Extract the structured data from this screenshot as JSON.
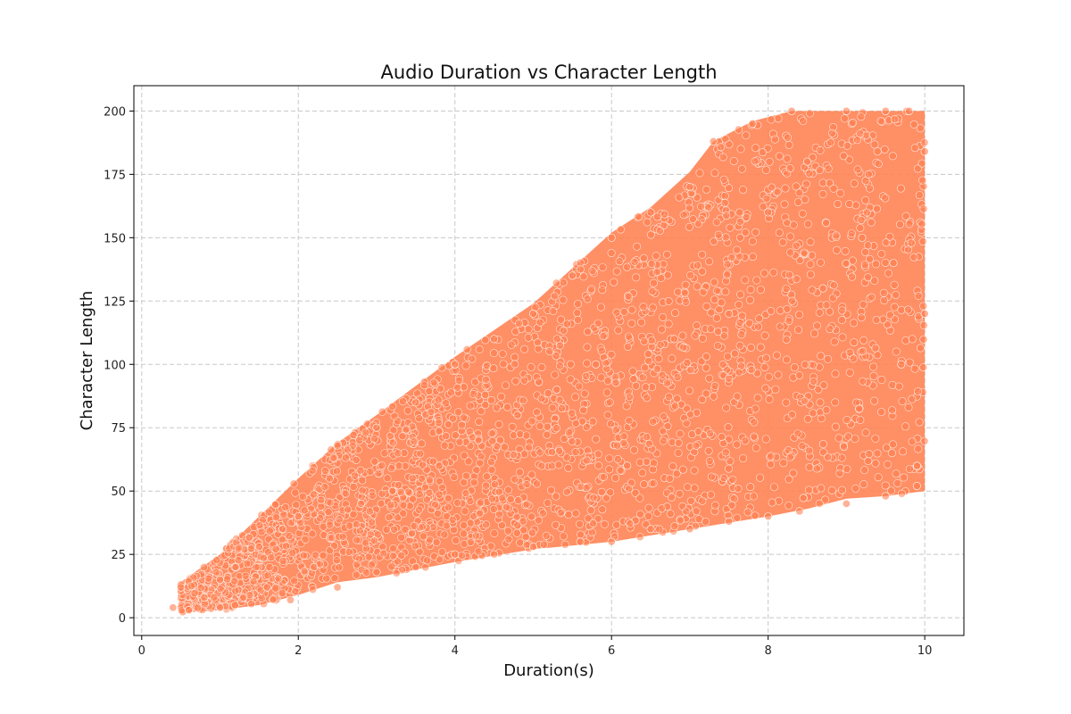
{
  "chart_data": {
    "type": "scatter",
    "title": "Audio Duration vs Character Length",
    "xlabel": "Duration(s)",
    "ylabel": "Character Length",
    "xlim": [
      -0.1,
      10.5
    ],
    "ylim": [
      -7,
      210
    ],
    "xticks": [
      0,
      2,
      4,
      6,
      8,
      10
    ],
    "yticks": [
      0,
      25,
      50,
      75,
      100,
      125,
      150,
      175,
      200
    ],
    "grid": true,
    "marker_color": "#ff7f50",
    "marker_alpha": 0.6,
    "marker_edge_color": "#ffffff",
    "series": [
      {
        "points": [
          [
            0.4,
            4
          ],
          [
            0.5,
            12
          ],
          [
            0.6,
            3
          ],
          [
            0.8,
            8
          ],
          [
            1.0,
            15
          ],
          [
            1.0,
            4
          ],
          [
            1.2,
            20
          ],
          [
            1.3,
            8
          ],
          [
            1.5,
            28
          ],
          [
            1.6,
            12
          ],
          [
            1.8,
            35
          ],
          [
            1.9,
            7
          ],
          [
            2.0,
            40
          ],
          [
            2.2,
            20
          ],
          [
            2.4,
            55
          ],
          [
            2.5,
            68
          ],
          [
            2.5,
            12
          ],
          [
            2.8,
            45
          ],
          [
            3.0,
            75
          ],
          [
            3.0,
            18
          ],
          [
            3.2,
            50
          ],
          [
            3.5,
            85
          ],
          [
            3.5,
            20
          ],
          [
            3.8,
            60
          ],
          [
            4.0,
            100
          ],
          [
            4.0,
            25
          ],
          [
            4.3,
            70
          ],
          [
            4.5,
            110
          ],
          [
            4.5,
            25
          ],
          [
            4.8,
            80
          ],
          [
            5.0,
            120
          ],
          [
            5.0,
            28
          ],
          [
            5.3,
            90
          ],
          [
            5.5,
            135
          ],
          [
            5.6,
            30
          ],
          [
            5.8,
            100
          ],
          [
            6.0,
            150
          ],
          [
            6.0,
            30
          ],
          [
            6.2,
            60
          ],
          [
            6.5,
            160
          ],
          [
            6.5,
            35
          ],
          [
            6.8,
            110
          ],
          [
            7.0,
            170
          ],
          [
            7.0,
            35
          ],
          [
            7.3,
            188
          ],
          [
            7.5,
            120
          ],
          [
            7.5,
            38
          ],
          [
            7.8,
            195
          ],
          [
            8.0,
            160
          ],
          [
            8.0,
            40
          ],
          [
            8.3,
            200
          ],
          [
            8.4,
            42
          ],
          [
            8.5,
            180
          ],
          [
            8.7,
            130
          ],
          [
            9.0,
            200
          ],
          [
            9.0,
            45
          ],
          [
            9.2,
            150
          ],
          [
            9.5,
            200
          ],
          [
            9.5,
            48
          ],
          [
            9.7,
            100
          ],
          [
            9.8,
            200
          ],
          [
            9.9,
            52
          ],
          [
            10.0,
            184
          ],
          [
            10.0,
            120
          ],
          [
            9.9,
            60
          ],
          [
            9.6,
            140
          ]
        ]
      }
    ]
  }
}
